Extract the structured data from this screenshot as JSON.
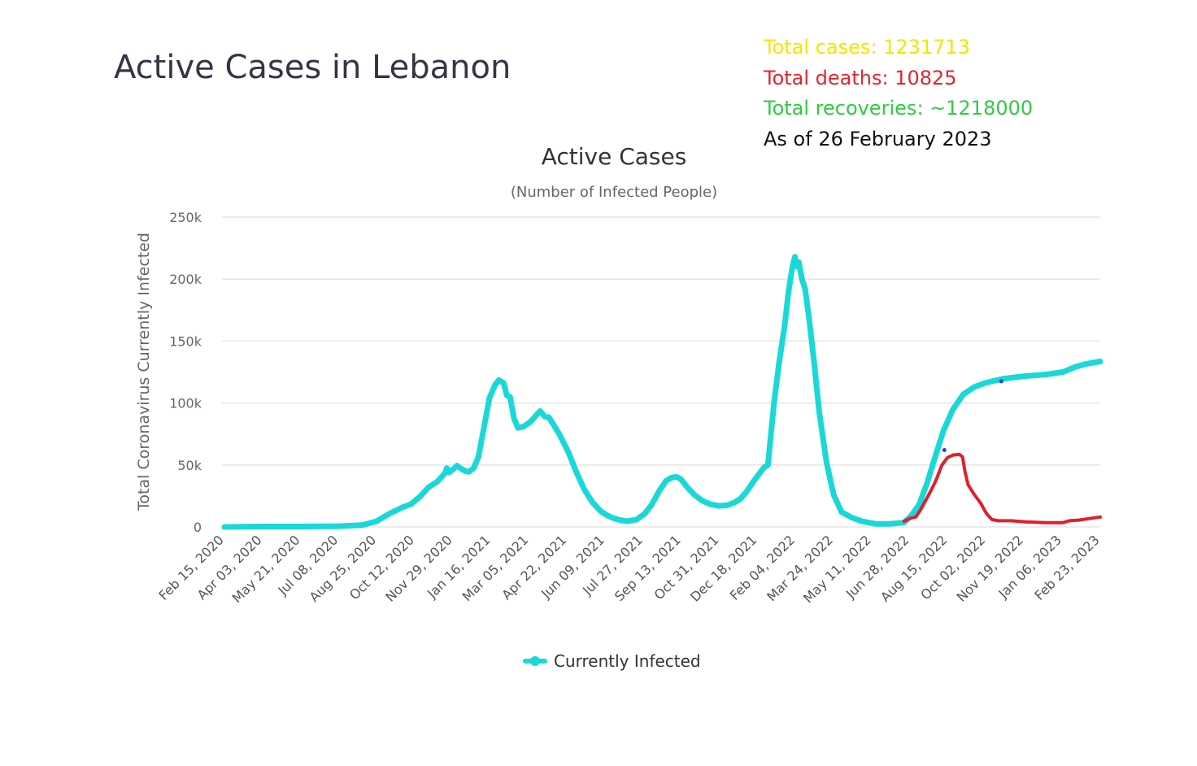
{
  "page": {
    "title": "Active Cases in Lebanon"
  },
  "stats": [
    {
      "text": "Total cases: 1231713",
      "color": "#f2e600"
    },
    {
      "text": "Total deaths: 10825",
      "color": "#e8232e"
    },
    {
      "text": "Total recoveries: ~1218000",
      "color": "#2ecc40"
    },
    {
      "text": "As of 26 February 2023",
      "color": "#111111"
    }
  ],
  "colors": {
    "currently_infected": "#1ad8d8",
    "overlay_red": "#e0202a",
    "overlay_cyan": "#1ad8d8",
    "grid": "#e6e6e6",
    "marker_blue": "#2b45c8"
  },
  "chart_data": {
    "type": "line",
    "title": "Active Cases",
    "subtitle": "(Number of Infected People)",
    "ylabel": "Total Coronavirus Currently Infected",
    "xlabel": "",
    "ylim": [
      0,
      250000
    ],
    "yticks": [
      0,
      50000,
      100000,
      150000,
      200000,
      250000
    ],
    "ytick_labels": [
      "0",
      "50k",
      "100k",
      "150k",
      "200k",
      "250k"
    ],
    "x_start": "2020-02-15",
    "x_end": "2023-02-26",
    "xtick_labels": [
      "Feb 15, 2020",
      "Apr 03, 2020",
      "May 21, 2020",
      "Jul 08, 2020",
      "Aug 25, 2020",
      "Oct 12, 2020",
      "Nov 29, 2020",
      "Jan 16, 2021",
      "Mar 05, 2021",
      "Apr 22, 2021",
      "Jun 09, 2021",
      "Jul 27, 2021",
      "Sep 13, 2021",
      "Oct 31, 2021",
      "Dec 18, 2021",
      "Feb 04, 2022",
      "Mar 24, 2022",
      "May 11, 2022",
      "Jun 28, 2022",
      "Aug 15, 2022",
      "Oct 02, 2022",
      "Nov 19, 2022",
      "Jan 06, 2023",
      "Feb 23, 2023"
    ],
    "grid": true,
    "legend": {
      "position": "bottom-center",
      "entries": [
        "Currently Infected"
      ]
    },
    "series": [
      {
        "name": "Currently Infected",
        "points": [
          [
            "2020-02-15",
            0
          ],
          [
            "2020-04-03",
            300
          ],
          [
            "2020-05-21",
            300
          ],
          [
            "2020-07-08",
            600
          ],
          [
            "2020-08-07",
            1500
          ],
          [
            "2020-08-25",
            4500
          ],
          [
            "2020-09-10",
            10500
          ],
          [
            "2020-09-26",
            15500
          ],
          [
            "2020-10-08",
            18500
          ],
          [
            "2020-10-20",
            25000
          ],
          [
            "2020-10-30",
            32000
          ],
          [
            "2020-11-10",
            36500
          ],
          [
            "2020-11-20",
            43500
          ],
          [
            "2020-11-22",
            47500
          ],
          [
            "2020-11-25",
            44000
          ],
          [
            "2020-12-01",
            47000
          ],
          [
            "2020-12-05",
            49500
          ],
          [
            "2020-12-10",
            47000
          ],
          [
            "2020-12-16",
            45000
          ],
          [
            "2020-12-20",
            44500
          ],
          [
            "2020-12-26",
            47500
          ],
          [
            "2021-01-01",
            56500
          ],
          [
            "2021-01-08",
            80000
          ],
          [
            "2021-01-15",
            104000
          ],
          [
            "2021-01-22",
            114500
          ],
          [
            "2021-01-27",
            118500
          ],
          [
            "2021-02-02",
            116000
          ],
          [
            "2021-02-06",
            106000
          ],
          [
            "2021-02-10",
            105000
          ],
          [
            "2021-02-15",
            87500
          ],
          [
            "2021-02-20",
            80000
          ],
          [
            "2021-02-27",
            81000
          ],
          [
            "2021-03-08",
            85000
          ],
          [
            "2021-03-15",
            90000
          ],
          [
            "2021-03-20",
            93500
          ],
          [
            "2021-03-26",
            89000
          ],
          [
            "2021-03-31",
            88500
          ],
          [
            "2021-04-06",
            82500
          ],
          [
            "2021-04-14",
            74000
          ],
          [
            "2021-04-25",
            60000
          ],
          [
            "2021-05-05",
            44000
          ],
          [
            "2021-05-15",
            30000
          ],
          [
            "2021-05-25",
            20000
          ],
          [
            "2021-06-05",
            12500
          ],
          [
            "2021-06-15",
            8500
          ],
          [
            "2021-06-26",
            6000
          ],
          [
            "2021-07-08",
            4500
          ],
          [
            "2021-07-20",
            6000
          ],
          [
            "2021-07-30",
            10500
          ],
          [
            "2021-08-08",
            18000
          ],
          [
            "2021-08-18",
            29500
          ],
          [
            "2021-08-26",
            37000
          ],
          [
            "2021-09-01",
            39500
          ],
          [
            "2021-09-08",
            40500
          ],
          [
            "2021-09-14",
            38500
          ],
          [
            "2021-09-22",
            32000
          ],
          [
            "2021-10-01",
            26000
          ],
          [
            "2021-10-10",
            21500
          ],
          [
            "2021-10-20",
            18500
          ],
          [
            "2021-11-01",
            17000
          ],
          [
            "2021-11-12",
            17500
          ],
          [
            "2021-11-20",
            19500
          ],
          [
            "2021-11-28",
            22500
          ],
          [
            "2021-12-06",
            28500
          ],
          [
            "2021-12-14",
            36000
          ],
          [
            "2021-12-22",
            43000
          ],
          [
            "2021-12-28",
            48000
          ],
          [
            "2022-01-02",
            50000
          ],
          [
            "2022-01-05",
            70000
          ],
          [
            "2022-01-10",
            102000
          ],
          [
            "2022-01-16",
            132000
          ],
          [
            "2022-01-23",
            162000
          ],
          [
            "2022-01-28",
            190000
          ],
          [
            "2022-02-02",
            210000
          ],
          [
            "2022-02-05",
            218000
          ],
          [
            "2022-02-08",
            210000
          ],
          [
            "2022-02-10",
            213500
          ],
          [
            "2022-02-14",
            200000
          ],
          [
            "2022-02-18",
            192000
          ],
          [
            "2022-02-23",
            168000
          ],
          [
            "2022-03-01",
            135000
          ],
          [
            "2022-03-08",
            92000
          ],
          [
            "2022-03-17",
            52000
          ],
          [
            "2022-03-26",
            26000
          ],
          [
            "2022-04-05",
            12000
          ],
          [
            "2022-04-18",
            7500
          ],
          [
            "2022-05-01",
            4500
          ],
          [
            "2022-05-18",
            2500
          ],
          [
            "2022-06-05",
            2500
          ],
          [
            "2022-06-23",
            3500
          ],
          [
            "2022-07-02",
            9000
          ],
          [
            "2022-07-12",
            18000
          ],
          [
            "2022-07-22",
            35000
          ],
          [
            "2022-08-01",
            56000
          ],
          [
            "2022-08-12",
            78000
          ],
          [
            "2022-08-24",
            95000
          ],
          [
            "2022-09-06",
            107000
          ],
          [
            "2022-09-20",
            113000
          ],
          [
            "2022-10-05",
            116500
          ],
          [
            "2022-10-26",
            119500
          ],
          [
            "2022-11-20",
            121500
          ],
          [
            "2022-12-20",
            123000
          ],
          [
            "2023-01-10",
            125000
          ],
          [
            "2023-01-25",
            129000
          ],
          [
            "2023-02-08",
            131500
          ],
          [
            "2023-02-26",
            133500
          ]
        ]
      }
    ],
    "overlay_annotation": {
      "color": "#e0202a",
      "points": [
        [
          "2022-06-23",
          4500
        ],
        [
          "2022-07-01",
          7000
        ],
        [
          "2022-07-08",
          8000
        ],
        [
          "2022-07-14",
          14000
        ],
        [
          "2022-07-20",
          21000
        ],
        [
          "2022-07-26",
          28000
        ],
        [
          "2022-08-02",
          37000
        ],
        [
          "2022-08-10",
          50000
        ],
        [
          "2022-08-17",
          56000
        ],
        [
          "2022-08-24",
          58000
        ],
        [
          "2022-09-01",
          58500
        ],
        [
          "2022-09-05",
          56500
        ],
        [
          "2022-09-08",
          45000
        ],
        [
          "2022-09-12",
          34000
        ],
        [
          "2022-09-20",
          26000
        ],
        [
          "2022-09-28",
          19000
        ],
        [
          "2022-10-05",
          11000
        ],
        [
          "2022-10-12",
          6000
        ],
        [
          "2022-10-20",
          5000
        ],
        [
          "2022-11-05",
          5000
        ],
        [
          "2022-11-25",
          4000
        ],
        [
          "2022-12-20",
          3500
        ],
        [
          "2023-01-10",
          3500
        ],
        [
          "2023-01-18",
          5000
        ],
        [
          "2023-01-30",
          5500
        ],
        [
          "2023-02-15",
          7000
        ],
        [
          "2023-02-26",
          8000
        ]
      ]
    },
    "overlay_markers": [
      {
        "date": "2022-08-13",
        "value": 62000
      },
      {
        "date": "2022-10-24",
        "value": 117500
      }
    ]
  }
}
